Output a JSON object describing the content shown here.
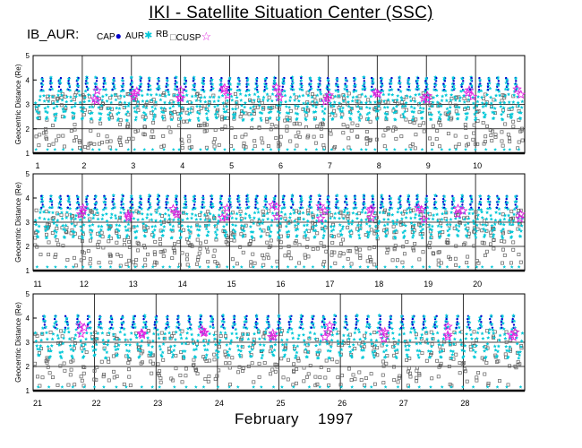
{
  "header": {
    "title": "IKI - Satellite Situation Center (SSC)",
    "satellite": "IB_AUR:"
  },
  "legend": {
    "items": [
      {
        "label": "CAP",
        "marker": "dot",
        "color": "#0000cc"
      },
      {
        "label": "AUR",
        "marker": "star",
        "color": "#00c8d8"
      },
      {
        "label": "RB",
        "marker": "square",
        "color": "#606060"
      },
      {
        "label": "CUSP",
        "marker": "star-open",
        "color": "#e020e0"
      }
    ]
  },
  "footer": {
    "month": "February",
    "year": "1997"
  },
  "chart_data": [
    {
      "type": "scatter",
      "ylabel": "Geocentric Distance (Re)",
      "ylim": [
        1,
        5
      ],
      "yticks": [
        "1",
        "2",
        "3",
        "4",
        "5"
      ],
      "xlim": [
        1,
        11
      ],
      "day_labels": [
        "1",
        "2",
        "3",
        "4",
        "5",
        "6",
        "7",
        "8",
        "9",
        "10"
      ],
      "cusp_days": [
        2.3,
        3.1,
        4.0,
        4.9,
        6.0,
        7.0,
        8.0,
        9.0,
        9.9,
        10.9
      ],
      "orbits_per_day": 5.5,
      "series": [
        {
          "name": "CAP",
          "color": "#0000cc",
          "marker": "dot"
        },
        {
          "name": "AUR",
          "color": "#00c8d8",
          "marker": "star"
        },
        {
          "name": "RB",
          "color": "#606060",
          "marker": "square"
        },
        {
          "name": "CUSP",
          "color": "#e020e0",
          "marker": "star-open"
        }
      ]
    },
    {
      "type": "scatter",
      "ylabel": "Geocentric Distance (Re)",
      "ylim": [
        1,
        5
      ],
      "yticks": [
        "1",
        "2",
        "3",
        "4",
        "5"
      ],
      "xlim": [
        11,
        21
      ],
      "day_labels": [
        "11",
        "12",
        "13",
        "14",
        "15",
        "16",
        "17",
        "18",
        "19",
        "20"
      ],
      "cusp_days": [
        11.0,
        12.0,
        12.9,
        13.9,
        14.9,
        15.9,
        16.9,
        17.9,
        18.9,
        19.7,
        20.9
      ],
      "orbits_per_day": 5.5,
      "series": [
        {
          "name": "CAP",
          "color": "#0000cc",
          "marker": "dot"
        },
        {
          "name": "AUR",
          "color": "#00c8d8",
          "marker": "star"
        },
        {
          "name": "RB",
          "color": "#606060",
          "marker": "square"
        },
        {
          "name": "CUSP",
          "color": "#e020e0",
          "marker": "star-open"
        }
      ]
    },
    {
      "type": "scatter",
      "ylabel": "Geocentric Distance (Re)",
      "ylim": [
        1,
        5
      ],
      "yticks": [
        "1",
        "2",
        "3",
        "4",
        "5"
      ],
      "xlim": [
        21,
        29
      ],
      "day_labels": [
        "21",
        "22",
        "23",
        "24",
        "25",
        "26",
        "27",
        "28"
      ],
      "cusp_days": [
        21.8,
        22.8,
        23.8,
        24.9,
        25.8,
        26.7,
        27.8,
        28.8
      ],
      "orbits_per_day": 5.5,
      "series": [
        {
          "name": "CAP",
          "color": "#0000cc",
          "marker": "dot"
        },
        {
          "name": "AUR",
          "color": "#00c8d8",
          "marker": "star"
        },
        {
          "name": "RB",
          "color": "#606060",
          "marker": "square"
        },
        {
          "name": "CUSP",
          "color": "#e020e0",
          "marker": "star-open"
        }
      ]
    }
  ]
}
